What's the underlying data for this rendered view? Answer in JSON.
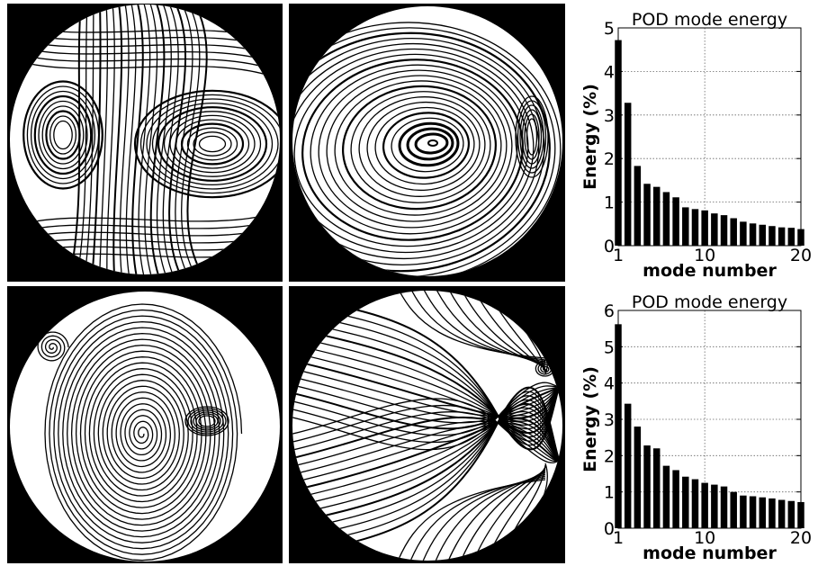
{
  "chart_data": [
    {
      "type": "bar",
      "title": "POD mode energy",
      "xlabel": "mode number",
      "ylabel": "Energy (%)",
      "x": [
        1,
        2,
        3,
        4,
        5,
        6,
        7,
        8,
        9,
        10,
        11,
        12,
        13,
        14,
        15,
        16,
        17,
        18,
        19,
        20
      ],
      "values": [
        4.72,
        3.28,
        1.83,
        1.42,
        1.35,
        1.23,
        1.11,
        0.88,
        0.84,
        0.81,
        0.74,
        0.7,
        0.63,
        0.55,
        0.51,
        0.48,
        0.45,
        0.42,
        0.41,
        0.38
      ],
      "ylim": [
        0,
        5
      ],
      "yticks": [
        0,
        1,
        2,
        3,
        4,
        5
      ],
      "xticks": [
        1,
        10,
        20
      ],
      "grid": true
    },
    {
      "type": "bar",
      "title": "POD mode energy",
      "xlabel": "mode number",
      "ylabel": "Energy (%)",
      "x": [
        1,
        2,
        3,
        4,
        5,
        6,
        7,
        8,
        9,
        10,
        11,
        12,
        13,
        14,
        15,
        16,
        17,
        18,
        19,
        20
      ],
      "values": [
        5.62,
        3.43,
        2.8,
        2.28,
        2.2,
        1.72,
        1.6,
        1.42,
        1.35,
        1.25,
        1.2,
        1.15,
        1.0,
        0.9,
        0.88,
        0.85,
        0.82,
        0.78,
        0.75,
        0.72
      ],
      "ylim": [
        0,
        6
      ],
      "yticks": [
        0,
        1,
        2,
        3,
        4,
        5,
        6
      ],
      "xticks": [
        1,
        10,
        20
      ],
      "grid": true
    }
  ],
  "streamline_panels": [
    {
      "pattern": "double-vortex"
    },
    {
      "pattern": "single-vortex-with-side-eddy"
    },
    {
      "pattern": "spiral-vortex"
    },
    {
      "pattern": "saddle-shear-flow"
    }
  ]
}
